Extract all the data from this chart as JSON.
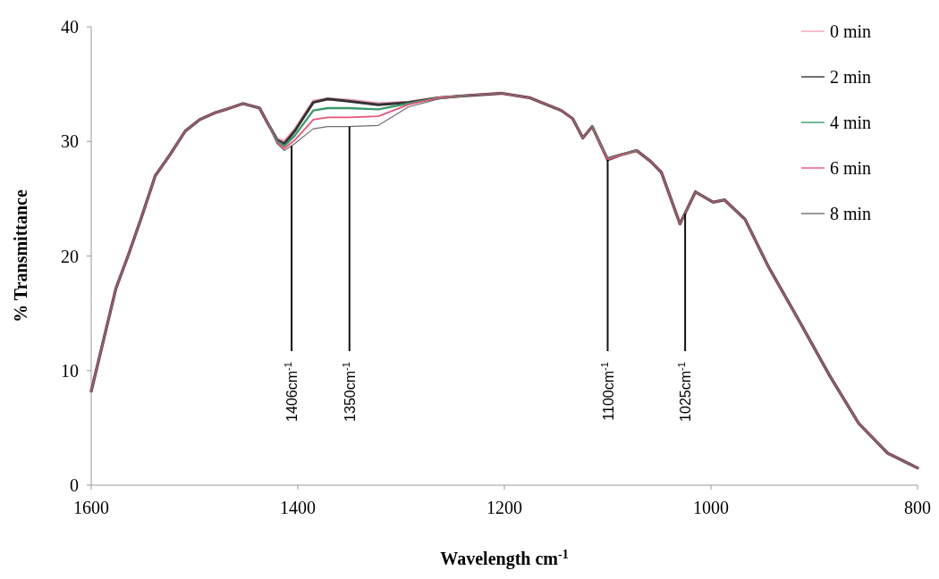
{
  "chart_data": {
    "type": "line",
    "xlabel": "Wavelength cm$^{-1}$",
    "ylabel": "% Transmittance",
    "xlim": [
      1600,
      800
    ],
    "xticks": [
      1600,
      1400,
      1200,
      1000,
      800
    ],
    "ylim": [
      0,
      40
    ],
    "yticks": [
      0,
      10,
      20,
      30,
      40
    ],
    "legend": "top right",
    "line_style": "solid",
    "x": [
      1600,
      1576,
      1564,
      1552,
      1538,
      1524,
      1509,
      1495,
      1480,
      1466,
      1453,
      1437,
      1428,
      1420,
      1413,
      1403,
      1385,
      1371,
      1351,
      1322,
      1293,
      1264,
      1236,
      1203,
      1175,
      1145,
      1134,
      1124,
      1115,
      1100,
      1088,
      1072,
      1059,
      1048,
      1030,
      1015,
      998,
      987,
      967,
      944,
      915,
      886,
      857,
      829,
      800
    ],
    "series": [
      {
        "name": "0 min",
        "color": "#f4a6b8",
        "values": [
          8.2,
          17.2,
          20.1,
          23.2,
          27.0,
          28.8,
          30.9,
          31.9,
          32.5,
          32.9,
          33.3,
          32.9,
          31.4,
          30.2,
          30.0,
          31.0,
          33.5,
          33.7,
          33.6,
          33.3,
          33.4,
          33.8,
          34.0,
          34.2,
          33.8,
          32.7,
          32.0,
          30.3,
          31.3,
          28.4,
          28.8,
          29.2,
          28.3,
          27.3,
          22.8,
          25.6,
          24.7,
          24.9,
          23.2,
          19.0,
          14.4,
          9.7,
          5.4,
          2.8,
          1.5
        ]
      },
      {
        "name": "2 min",
        "color": "#333333",
        "values": [
          8.2,
          17.2,
          20.1,
          23.2,
          27.0,
          28.8,
          30.9,
          31.9,
          32.5,
          32.9,
          33.3,
          32.9,
          31.4,
          30.1,
          29.8,
          30.9,
          33.4,
          33.7,
          33.5,
          33.2,
          33.4,
          33.8,
          34.0,
          34.2,
          33.8,
          32.7,
          32.0,
          30.3,
          31.3,
          28.4,
          28.8,
          29.2,
          28.3,
          27.3,
          22.8,
          25.6,
          24.7,
          24.9,
          23.2,
          19.0,
          14.4,
          9.7,
          5.4,
          2.8,
          1.5
        ]
      },
      {
        "name": "4 min",
        "color": "#3a9a6a",
        "values": [
          null,
          null,
          null,
          null,
          null,
          null,
          null,
          null,
          null,
          null,
          null,
          null,
          31.4,
          30.0,
          29.6,
          30.5,
          32.7,
          32.9,
          32.9,
          32.8,
          33.3,
          33.8,
          34.0,
          null,
          null,
          null,
          null,
          null,
          31.3,
          28.5,
          28.8,
          29.2,
          null,
          null,
          null,
          null,
          null,
          null,
          null,
          null,
          null,
          null,
          null,
          null,
          null
        ]
      },
      {
        "name": "6 min",
        "color": "#e8557a",
        "values": [
          8.2,
          17.2,
          20.1,
          23.2,
          27.0,
          28.8,
          30.9,
          31.9,
          32.5,
          32.9,
          33.3,
          32.9,
          31.4,
          29.9,
          29.4,
          30.1,
          31.9,
          32.1,
          32.1,
          32.2,
          33.2,
          33.8,
          34.0,
          34.2,
          33.8,
          32.7,
          32.0,
          30.3,
          31.3,
          28.4,
          28.8,
          29.2,
          28.3,
          27.3,
          22.8,
          25.6,
          24.7,
          24.9,
          23.2,
          19.0,
          14.4,
          9.7,
          5.4,
          2.8,
          1.5
        ]
      },
      {
        "name": "8 min",
        "color": "#6e6e6e",
        "values": [
          8.2,
          17.2,
          20.1,
          23.2,
          27.0,
          28.8,
          30.9,
          31.9,
          32.5,
          32.9,
          33.3,
          32.9,
          31.4,
          29.8,
          29.2,
          29.8,
          31.1,
          31.3,
          31.3,
          31.4,
          33.0,
          33.7,
          34.0,
          34.2,
          33.8,
          32.7,
          32.0,
          30.3,
          31.3,
          28.6,
          28.9,
          29.2,
          28.3,
          27.3,
          22.8,
          25.6,
          24.7,
          24.9,
          23.2,
          19.0,
          14.4,
          9.7,
          5.4,
          2.8,
          1.5
        ]
      }
    ],
    "annotations": [
      {
        "text": "1406cm$^{-1}$",
        "x": 1406,
        "y": 29.6
      },
      {
        "text": "1350cm$^{-1}$",
        "x": 1350,
        "y": 31.3
      },
      {
        "text": "1100cm$^{-1}$",
        "x": 1100,
        "y": 28.4
      },
      {
        "text": "1025cm$^{-1}$",
        "x": 1025,
        "y": 23.7
      }
    ]
  }
}
